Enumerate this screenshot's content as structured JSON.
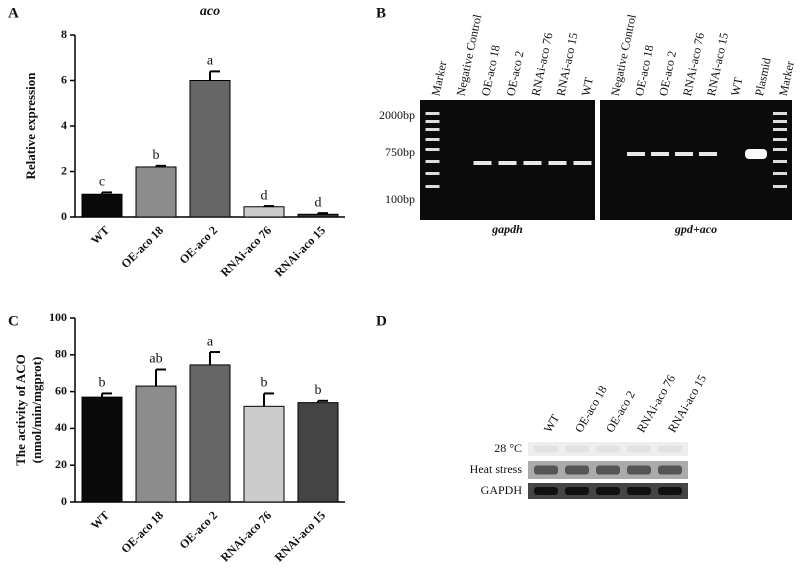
{
  "panel_labels": [
    "A",
    "B",
    "C",
    "D"
  ],
  "chart_data": [
    {
      "type": "bar",
      "title": "aco",
      "ylabel": "Relative expression",
      "categories": [
        "WT",
        "OE-aco 18",
        "OE-aco 2",
        "RNAi-aco 76",
        "RNAi-aco 15"
      ],
      "values": [
        1.0,
        2.2,
        6.0,
        0.45,
        0.12
      ],
      "errors": [
        0.08,
        0.05,
        0.4,
        0.03,
        0.05
      ],
      "annotations": [
        "c",
        "b",
        "a",
        "d",
        "d"
      ],
      "colors": [
        "#0a0a0a",
        "#8c8c8c",
        "#666666",
        "#cccccc",
        "#333333"
      ],
      "ylim": [
        0,
        8
      ],
      "yticks": [
        0,
        2,
        4,
        6,
        8
      ]
    },
    {
      "type": "bar",
      "ylabel": [
        "The activity of ACO",
        "(nmol/min/mgprot)"
      ],
      "categories": [
        "WT",
        "OE-aco 18",
        "OE-aco 2",
        "RNAi-aco 76",
        "RNAi-aco 15"
      ],
      "values": [
        57,
        63,
        74.5,
        52,
        54
      ],
      "errors": [
        2,
        9,
        7,
        7,
        1
      ],
      "annotations": [
        "b",
        "ab",
        "a",
        "b",
        "b"
      ],
      "colors": [
        "#0a0a0a",
        "#8c8c8c",
        "#666666",
        "#cccccc",
        "#444444"
      ],
      "ylim": [
        0,
        100
      ],
      "yticks": [
        0,
        20,
        40,
        60,
        80,
        100
      ]
    }
  ],
  "gels": {
    "B": {
      "size_labels": [
        "2000bp",
        "750bp",
        "100bp"
      ],
      "left": {
        "lanes": [
          "Marker",
          "Negative Control",
          "OE-aco 18",
          "OE-aco 2",
          "RNAi-aco 76",
          "RNAi-aco 15",
          "WT"
        ],
        "caption": "gapdh"
      },
      "right": {
        "lanes": [
          "Negative Control",
          "OE-aco 18",
          "OE-aco 2",
          "RNAi-aco 76",
          "RNAi-aco 15",
          "WT",
          "Plasmid",
          "Marker"
        ],
        "caption": "gpd+aco"
      }
    },
    "D": {
      "lanes": [
        "WT",
        "OE-aco 18",
        "OE-aco 2",
        "RNAi-aco 76",
        "RNAi-aco 15"
      ],
      "rows": [
        "28 °C",
        "Heat stress",
        "GAPDH"
      ]
    }
  }
}
